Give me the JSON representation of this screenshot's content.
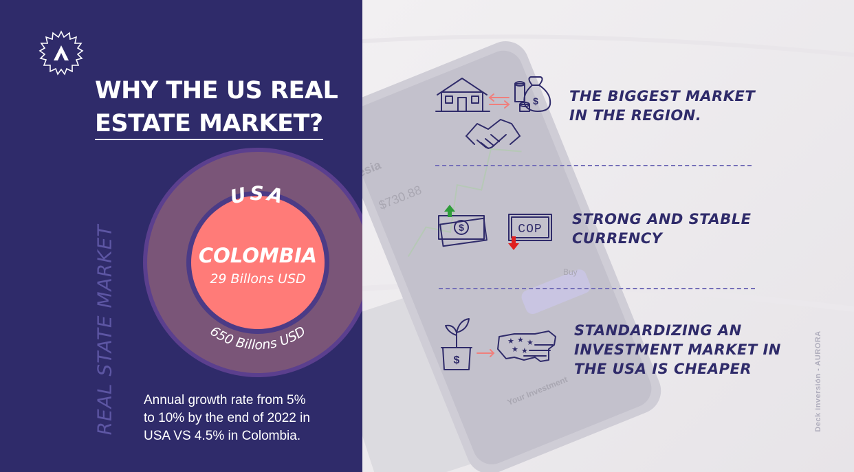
{
  "headline": {
    "line1": "WHY THE US REAL",
    "line2": "ESTATE MARKET?"
  },
  "vertical_label": "REAL STATE MARKET",
  "market_diagram": {
    "outer_label": "USA",
    "outer_value": "650 Billons USD",
    "inner_label": "COLOMBIA",
    "inner_value": "29 Billons USD",
    "colors": {
      "outer_ring": "#7a5578",
      "outer_border": "#5b3f8e",
      "inner": "#ff7b78",
      "inner_border": "#4b3b86"
    }
  },
  "growth_note": {
    "line1": "Annual growth rate from 5%",
    "line2": "to 10% by the end of 2022 in",
    "line3": "USA VS 4.5% in Colombia."
  },
  "features": [
    {
      "line1": "THE BIGGEST MARKET",
      "line2": "IN THE REGION.",
      "icons": [
        "house-icon",
        "money-bag-icon",
        "handshake-icon",
        "exchange-arrows-icon"
      ]
    },
    {
      "line1": "STRONG AND STABLE",
      "line2": "CURRENCY",
      "icons": [
        "dollar-bill-icon",
        "cop-bill-icon",
        "arrow-up-icon",
        "arrow-down-icon"
      ]
    },
    {
      "line1": "STANDARDIZING AN",
      "line2": "INVESTMENT MARKET IN",
      "line3": "THE USA IS CHEAPER",
      "icons": [
        "plant-pot-icon",
        "usa-map-icon"
      ]
    }
  ],
  "cop_label": "COP",
  "side_caption": "Deck inversión - AURORA",
  "phone_screen": {
    "title": "esia",
    "price": "$730.88",
    "buy_label": "Buy",
    "footer": "Your Investment"
  },
  "colors": {
    "navy": "#2f2b6a",
    "coral": "#f07f7c",
    "green": "#2e9c3a",
    "red": "#e02020"
  }
}
